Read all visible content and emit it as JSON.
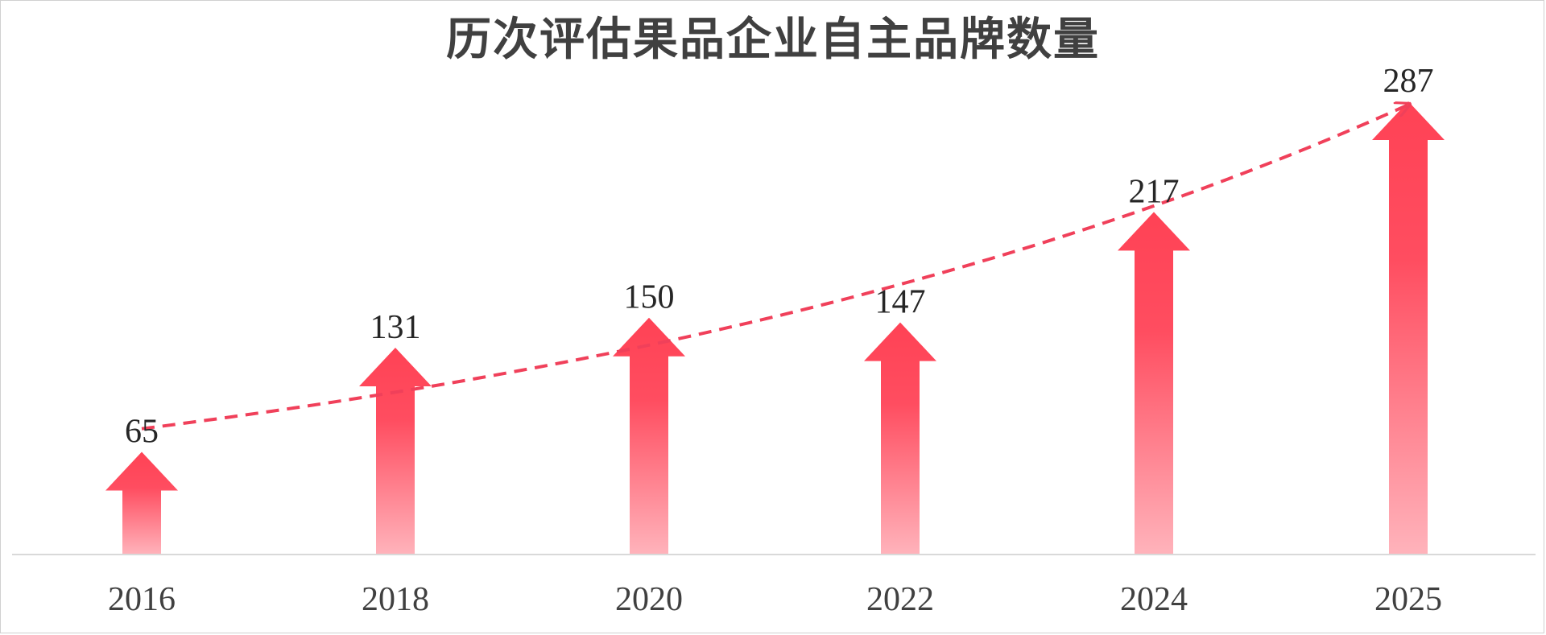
{
  "title": "历次评估果品企业自主品牌数量",
  "colors": {
    "arrow_top": "#ff4255",
    "arrow_mid": "#ff4d60",
    "arrow_bottom": "#ffb3bb",
    "trend_line": "#f0405a",
    "axis_line": "#d9d9d9"
  },
  "chart_data": {
    "type": "bar",
    "mark": "upward-arrow",
    "title": "历次评估果品企业自主品牌数量",
    "categories": [
      "2016",
      "2018",
      "2020",
      "2022",
      "2024",
      "2025"
    ],
    "values": [
      65,
      131,
      150,
      147,
      217,
      287
    ],
    "data_labels": [
      "65",
      "131",
      "150",
      "147",
      "217",
      "287"
    ],
    "trendline": "exponential, dashed, with arrowhead",
    "xlabel": "",
    "ylabel": "",
    "ylim": [
      0,
      300
    ],
    "grid": false,
    "legend": "none"
  }
}
